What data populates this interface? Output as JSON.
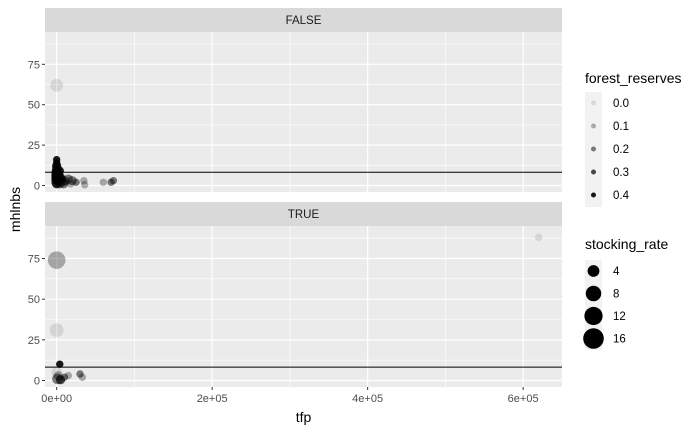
{
  "chart_data": {
    "type": "scatter",
    "xlabel": "tfp",
    "ylabel": "mhlnbs",
    "xlim": [
      -15000,
      650000
    ],
    "ylim": [
      -4,
      95
    ],
    "x_ticks": [
      0,
      200000,
      400000,
      600000
    ],
    "x_tick_labels": [
      "0e+00",
      "2e+05",
      "4e+05",
      "6e+05"
    ],
    "y_ticks": [
      0,
      25,
      50,
      75
    ],
    "y_tick_labels": [
      "0",
      "25",
      "50",
      "75"
    ],
    "grid": true,
    "facets": [
      {
        "label": "FALSE",
        "hline": 8.2,
        "points": [
          {
            "x": 0,
            "y": 62,
            "forest_reserves": 0.0,
            "stocking_rate": 5
          },
          {
            "x": 0,
            "y": 16,
            "forest_reserves": 0.4,
            "stocking_rate": 1
          },
          {
            "x": 0,
            "y": 14,
            "forest_reserves": 0.4,
            "stocking_rate": 1
          },
          {
            "x": 0,
            "y": 12,
            "forest_reserves": 0.4,
            "stocking_rate": 2
          },
          {
            "x": 0,
            "y": 10,
            "forest_reserves": 0.4,
            "stocking_rate": 2
          },
          {
            "x": 0,
            "y": 8,
            "forest_reserves": 0.4,
            "stocking_rate": 3
          },
          {
            "x": 0,
            "y": 6,
            "forest_reserves": 0.4,
            "stocking_rate": 3
          },
          {
            "x": 0,
            "y": 4,
            "forest_reserves": 0.4,
            "stocking_rate": 3
          },
          {
            "x": 0,
            "y": 2,
            "forest_reserves": 0.3,
            "stocking_rate": 3
          },
          {
            "x": 0,
            "y": 1,
            "forest_reserves": 0.3,
            "stocking_rate": 2
          },
          {
            "x": 2000,
            "y": 6,
            "forest_reserves": 0.3,
            "stocking_rate": 3
          },
          {
            "x": 3000,
            "y": 3,
            "forest_reserves": 0.3,
            "stocking_rate": 2
          },
          {
            "x": 3500,
            "y": 9,
            "forest_reserves": 0.4,
            "stocking_rate": 2
          },
          {
            "x": 4000,
            "y": 1,
            "forest_reserves": 0.2,
            "stocking_rate": 2
          },
          {
            "x": 5000,
            "y": 5,
            "forest_reserves": 0.3,
            "stocking_rate": 2
          },
          {
            "x": 6000,
            "y": 2,
            "forest_reserves": 0.2,
            "stocking_rate": 2
          },
          {
            "x": 7000,
            "y": 4,
            "forest_reserves": 0.3,
            "stocking_rate": 1
          },
          {
            "x": 9000,
            "y": 1,
            "forest_reserves": 0.2,
            "stocking_rate": 2
          },
          {
            "x": 10000,
            "y": 3,
            "forest_reserves": 0.2,
            "stocking_rate": 2
          },
          {
            "x": 12000,
            "y": 2,
            "forest_reserves": 0.1,
            "stocking_rate": 1
          },
          {
            "x": 15000,
            "y": 4,
            "forest_reserves": 0.2,
            "stocking_rate": 2
          },
          {
            "x": 18000,
            "y": 1,
            "forest_reserves": 0.1,
            "stocking_rate": 1
          },
          {
            "x": 20000,
            "y": 3,
            "forest_reserves": 0.2,
            "stocking_rate": 2
          },
          {
            "x": 25000,
            "y": 2,
            "forest_reserves": 0.2,
            "stocking_rate": 1
          },
          {
            "x": 35000,
            "y": 3,
            "forest_reserves": 0.1,
            "stocking_rate": 1
          },
          {
            "x": 36000,
            "y": 0.5,
            "forest_reserves": 0.1,
            "stocking_rate": 1
          },
          {
            "x": 60000,
            "y": 2,
            "forest_reserves": 0.1,
            "stocking_rate": 1
          },
          {
            "x": 70000,
            "y": 2,
            "forest_reserves": 0.2,
            "stocking_rate": 1
          },
          {
            "x": 73000,
            "y": 3,
            "forest_reserves": 0.2,
            "stocking_rate": 1
          }
        ]
      },
      {
        "label": "TRUE",
        "hline": 8.2,
        "points": [
          {
            "x": 0,
            "y": 74,
            "forest_reserves": 0.1,
            "stocking_rate": 11
          },
          {
            "x": 0,
            "y": 31,
            "forest_reserves": 0.0,
            "stocking_rate": 6
          },
          {
            "x": 0,
            "y": 5,
            "forest_reserves": 0.0,
            "stocking_rate": 3
          },
          {
            "x": 1000,
            "y": 1,
            "forest_reserves": 0.2,
            "stocking_rate": 3
          },
          {
            "x": 2000,
            "y": 3,
            "forest_reserves": 0.1,
            "stocking_rate": 2
          },
          {
            "x": 4000,
            "y": 10,
            "forest_reserves": 0.4,
            "stocking_rate": 1
          },
          {
            "x": 5000,
            "y": 0.5,
            "forest_reserves": 0.3,
            "stocking_rate": 2
          },
          {
            "x": 10000,
            "y": 2,
            "forest_reserves": 0.2,
            "stocking_rate": 1
          },
          {
            "x": 15000,
            "y": 3,
            "forest_reserves": 0.1,
            "stocking_rate": 1
          },
          {
            "x": 30000,
            "y": 4,
            "forest_reserves": 0.2,
            "stocking_rate": 1
          },
          {
            "x": 33000,
            "y": 2,
            "forest_reserves": 0.1,
            "stocking_rate": 1
          },
          {
            "x": 620000,
            "y": 88,
            "forest_reserves": 0.0,
            "stocking_rate": 1
          }
        ]
      }
    ],
    "legends": [
      {
        "title": "forest_reserves",
        "labels": [
          "0.0",
          "0.1",
          "0.2",
          "0.3",
          "0.4"
        ],
        "values": [
          0.0,
          0.1,
          0.2,
          0.3,
          0.4
        ]
      },
      {
        "title": "stocking_rate",
        "labels": [
          "4",
          "8",
          "12",
          "16"
        ],
        "values": [
          4,
          8,
          12,
          16
        ]
      }
    ],
    "legend_position": "right",
    "colors": {
      "panel_bg": "#ebebeb",
      "strip_bg": "#d9d9d9",
      "grid": "#ffffff",
      "point": "#000000",
      "hline": "#000000"
    }
  }
}
